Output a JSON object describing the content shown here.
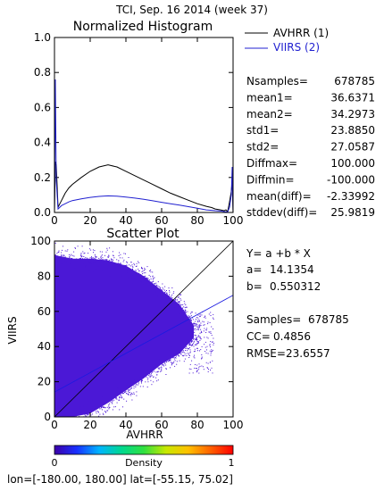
{
  "header": {
    "title": "TCI,  Sep. 16 2014 (week 37)",
    "footer": "lon=[-180.00, 180.00] lat=[-55.15, 75.02]"
  },
  "legend": {
    "items": [
      {
        "label": "AVHRR (1)",
        "color": "#000000"
      },
      {
        "label": "VIIRS (2)",
        "color": "#2020d0"
      }
    ]
  },
  "stats": [
    {
      "label": "Nsamples=",
      "value": "678785"
    },
    {
      "label": "mean1=",
      "value": "36.6371"
    },
    {
      "label": "mean2=",
      "value": "34.2973"
    },
    {
      "label": "std1=",
      "value": "23.8850"
    },
    {
      "label": "std2=",
      "value": "27.0587"
    },
    {
      "label": "Diffmax=",
      "value": "100.000"
    },
    {
      "label": "Diffmin=",
      "value": "-100.000"
    },
    {
      "label": "mean(diff)=",
      "value": "-2.33992"
    },
    {
      "label": "stddev(diff)=",
      "value": "25.9819"
    }
  ],
  "regression": {
    "equation": "Y= a +b * X",
    "a_label": "a=",
    "a_value": "14.1354",
    "b_label": "b=",
    "b_value": "0.550312",
    "samples_label": "Samples=",
    "samples_value": "678785",
    "cc_label": "CC=",
    "cc_value": "0.4856",
    "rmse_label": "RMSE=",
    "rmse_value": "23.6557"
  },
  "colorbar": {
    "label": "Density",
    "min_label": "0",
    "max_label": "1",
    "colormap": [
      "#3c00a8",
      "#1830ff",
      "#00b4ff",
      "#00d890",
      "#30e040",
      "#c8e800",
      "#ffc000",
      "#ff6000",
      "#ff0000"
    ]
  },
  "colors": {
    "avhrr": "#000000",
    "viirs": "#2020d0",
    "scatter_fill": "#4b18d6",
    "scatter_core": "#3a10c8"
  },
  "chart_data": [
    {
      "type": "line",
      "title": "Normalized Histogram",
      "xlim": [
        0,
        100
      ],
      "ylim": [
        0,
        1.0
      ],
      "xticks": [
        "0",
        "20",
        "40",
        "60",
        "80",
        "100"
      ],
      "yticks": [
        "0.0",
        "0.2",
        "0.4",
        "0.6",
        "0.8",
        "1.0"
      ],
      "x": [
        0,
        0.5,
        1,
        2,
        3,
        4,
        5,
        6,
        8,
        10,
        15,
        20,
        25,
        30,
        35,
        40,
        45,
        50,
        55,
        60,
        65,
        70,
        75,
        80,
        85,
        88,
        90,
        93,
        95,
        96,
        97,
        98,
        99,
        99.5,
        100
      ],
      "series": [
        {
          "name": "AVHRR (1)",
          "values": [
            0.0,
            0.29,
            0.27,
            0.03,
            0.05,
            0.07,
            0.09,
            0.11,
            0.14,
            0.16,
            0.2,
            0.235,
            0.26,
            0.272,
            0.26,
            0.235,
            0.21,
            0.185,
            0.16,
            0.135,
            0.11,
            0.09,
            0.07,
            0.05,
            0.035,
            0.028,
            0.02,
            0.015,
            0.01,
            0.015,
            0.005,
            0.06,
            0.12,
            0.18,
            0.0
          ]
        },
        {
          "name": "VIIRS (2)",
          "values": [
            0.0,
            0.76,
            0.18,
            0.02,
            0.03,
            0.04,
            0.045,
            0.05,
            0.06,
            0.068,
            0.078,
            0.086,
            0.092,
            0.095,
            0.093,
            0.088,
            0.082,
            0.075,
            0.067,
            0.058,
            0.05,
            0.042,
            0.033,
            0.024,
            0.015,
            0.012,
            0.01,
            0.008,
            0.005,
            0.004,
            0.003,
            0.03,
            0.1,
            0.26,
            0.0
          ]
        }
      ]
    },
    {
      "type": "scatter",
      "title": "Scatter Plot",
      "xlabel": "AVHRR",
      "ylabel": "VIIRS",
      "xlim": [
        0,
        100
      ],
      "ylim": [
        0,
        100
      ],
      "xticks": [
        "0",
        "20",
        "40",
        "60",
        "80",
        "100"
      ],
      "yticks": [
        "0",
        "20",
        "40",
        "60",
        "80",
        "100"
      ],
      "regression_line": {
        "a": 14.1354,
        "b": 0.550312
      },
      "one_to_one_line": true,
      "density_envelope": {
        "x": [
          0,
          10,
          20,
          30,
          40,
          50,
          60,
          70,
          78
        ],
        "y_low": [
          0,
          0,
          2,
          8,
          15,
          22,
          30,
          36,
          45
        ],
        "y_high": [
          92,
          90,
          90,
          89,
          86,
          80,
          72,
          64,
          52
        ]
      }
    }
  ]
}
